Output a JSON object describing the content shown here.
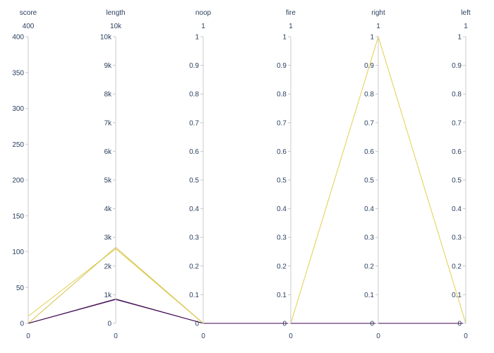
{
  "chart_data": {
    "type": "parallel_coordinates",
    "dimensions": [
      {
        "name": "score",
        "range": [
          0,
          400
        ],
        "ticks": [
          0,
          50,
          100,
          150,
          200,
          250,
          300,
          350,
          400
        ],
        "tick_labels": [
          "0",
          "50",
          "100",
          "150",
          "200",
          "250",
          "300",
          "350",
          "400"
        ],
        "range_max_label": "400",
        "range_min_label": "0"
      },
      {
        "name": "length",
        "range": [
          0,
          10000
        ],
        "ticks": [
          0,
          1000,
          2000,
          3000,
          4000,
          5000,
          6000,
          7000,
          8000,
          9000,
          10000
        ],
        "tick_labels": [
          "0",
          "1k",
          "2k",
          "3k",
          "4k",
          "5k",
          "6k",
          "7k",
          "8k",
          "9k",
          "10k"
        ],
        "range_max_label": "10k",
        "range_min_label": "0"
      },
      {
        "name": "noop",
        "range": [
          0,
          1
        ],
        "ticks": [
          0,
          0.1,
          0.2,
          0.3,
          0.4,
          0.5,
          0.6,
          0.7,
          0.8,
          0.9,
          1
        ],
        "tick_labels": [
          "0",
          "0.1",
          "0.2",
          "0.3",
          "0.4",
          "0.5",
          "0.6",
          "0.7",
          "0.8",
          "0.9",
          "1"
        ],
        "range_max_label": "1",
        "range_min_label": "0"
      },
      {
        "name": "fire",
        "range": [
          0,
          1
        ],
        "ticks": [
          0,
          0.1,
          0.2,
          0.3,
          0.4,
          0.5,
          0.6,
          0.7,
          0.8,
          0.9,
          1
        ],
        "tick_labels": [
          "0",
          "0.1",
          "0.2",
          "0.3",
          "0.4",
          "0.5",
          "0.6",
          "0.7",
          "0.8",
          "0.9",
          "1"
        ],
        "range_max_label": "1",
        "range_min_label": "0"
      },
      {
        "name": "right",
        "range": [
          0,
          1
        ],
        "ticks": [
          0,
          0.1,
          0.2,
          0.3,
          0.4,
          0.5,
          0.6,
          0.7,
          0.8,
          0.9,
          1
        ],
        "tick_labels": [
          "0",
          "0.1",
          "0.2",
          "0.3",
          "0.4",
          "0.5",
          "0.6",
          "0.7",
          "0.8",
          "0.9",
          "1"
        ],
        "range_max_label": "1",
        "range_min_label": "0"
      },
      {
        "name": "left",
        "range": [
          0,
          1
        ],
        "ticks": [
          0,
          0.1,
          0.2,
          0.3,
          0.4,
          0.5,
          0.6,
          0.7,
          0.8,
          0.9,
          1
        ],
        "tick_labels": [
          "0",
          "0.1",
          "0.2",
          "0.3",
          "0.4",
          "0.5",
          "0.6",
          "0.7",
          "0.8",
          "0.9",
          "1"
        ],
        "range_max_label": "1",
        "range_min_label": "0"
      }
    ],
    "series": [
      {
        "color": "#e1ca3a",
        "values": [
          10,
          2600,
          0,
          0,
          1,
          0
        ]
      },
      {
        "color": "#cdb93b",
        "values": [
          0,
          2650,
          0,
          0,
          0,
          0
        ]
      },
      {
        "color": "#2d0b3d",
        "values": [
          0,
          850,
          0,
          0,
          0,
          0
        ]
      },
      {
        "color": "#440154",
        "values": [
          0,
          830,
          0,
          0,
          0,
          0
        ]
      }
    ],
    "grid": false,
    "legend": "none"
  }
}
